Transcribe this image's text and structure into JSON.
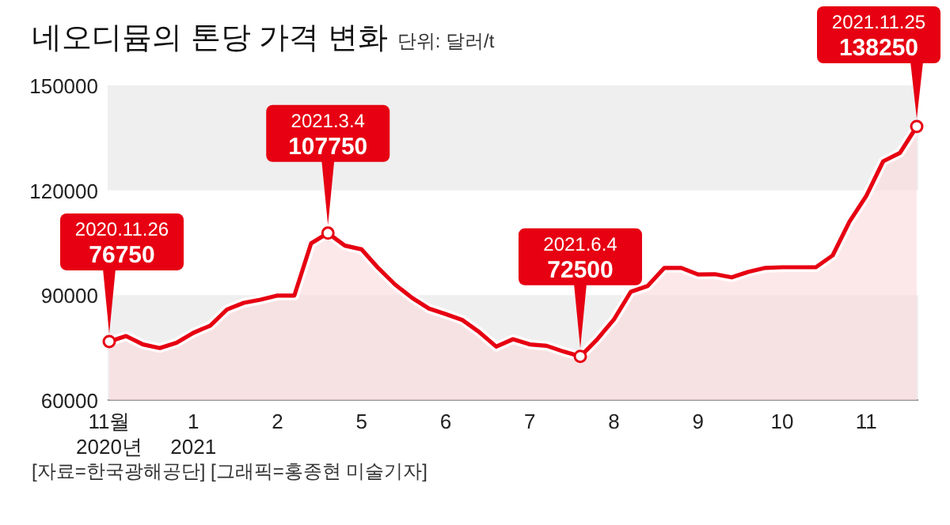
{
  "chart_data": {
    "type": "area",
    "title": "네오디뮴의 톤당 가격 변화",
    "subtitle": "단위: 달러/t",
    "categories": [
      "11월 2020년",
      null,
      null,
      null,
      null,
      "1 2021",
      null,
      null,
      null,
      null,
      "2",
      null,
      null,
      null,
      null,
      "5",
      null,
      null,
      null,
      null,
      "6",
      null,
      null,
      null,
      null,
      "7",
      null,
      null,
      null,
      null,
      "8",
      null,
      null,
      null,
      null,
      "9",
      null,
      null,
      null,
      null,
      "10",
      null,
      null,
      null,
      null,
      "11",
      null,
      null,
      null
    ],
    "series": [
      {
        "color": "#e60012",
        "value_labels": [
          "2020.11.26 76750",
          null,
          null,
          null,
          null,
          null,
          null,
          null,
          null,
          null,
          null,
          null,
          null,
          "2021.3.4 107750",
          null,
          null,
          null,
          null,
          null,
          null,
          null,
          null,
          null,
          null,
          null,
          null,
          null,
          null,
          "2021.6.4 72500",
          null,
          null,
          null,
          null,
          null,
          null,
          null,
          null,
          null,
          null,
          null,
          null,
          null,
          null,
          null,
          null,
          null,
          null,
          null,
          "2021.11.25 138250"
        ],
        "values": [
          76750,
          78300,
          75900,
          74900,
          76400,
          79200,
          81300,
          85900,
          87800,
          88700,
          89900,
          89900,
          104800,
          107750,
          104200,
          103100,
          97700,
          93000,
          89200,
          86200,
          84600,
          82900,
          79400,
          75300,
          77400,
          75900,
          75500,
          73900,
          72500,
          77300,
          83100,
          91000,
          92600,
          97800,
          97800,
          95900,
          96000,
          95100,
          96700,
          97800,
          98000,
          98000,
          98000,
          101400,
          111000,
          118400,
          128300,
          130700,
          138250
        ]
      }
    ],
    "ylim": [
      60000,
      150000
    ],
    "yticks": [
      60000,
      90000,
      120000,
      150000
    ],
    "bands": [
      {
        "axis": "y",
        "from": 60000,
        "to": 90000,
        "color": "#efefef"
      },
      {
        "axis": "y",
        "from": 120000,
        "to": 150000,
        "color": "#efefef"
      }
    ],
    "annotations": [
      "[자료=한국광해공단] [그래픽=홍종현 미술기자]"
    ]
  }
}
